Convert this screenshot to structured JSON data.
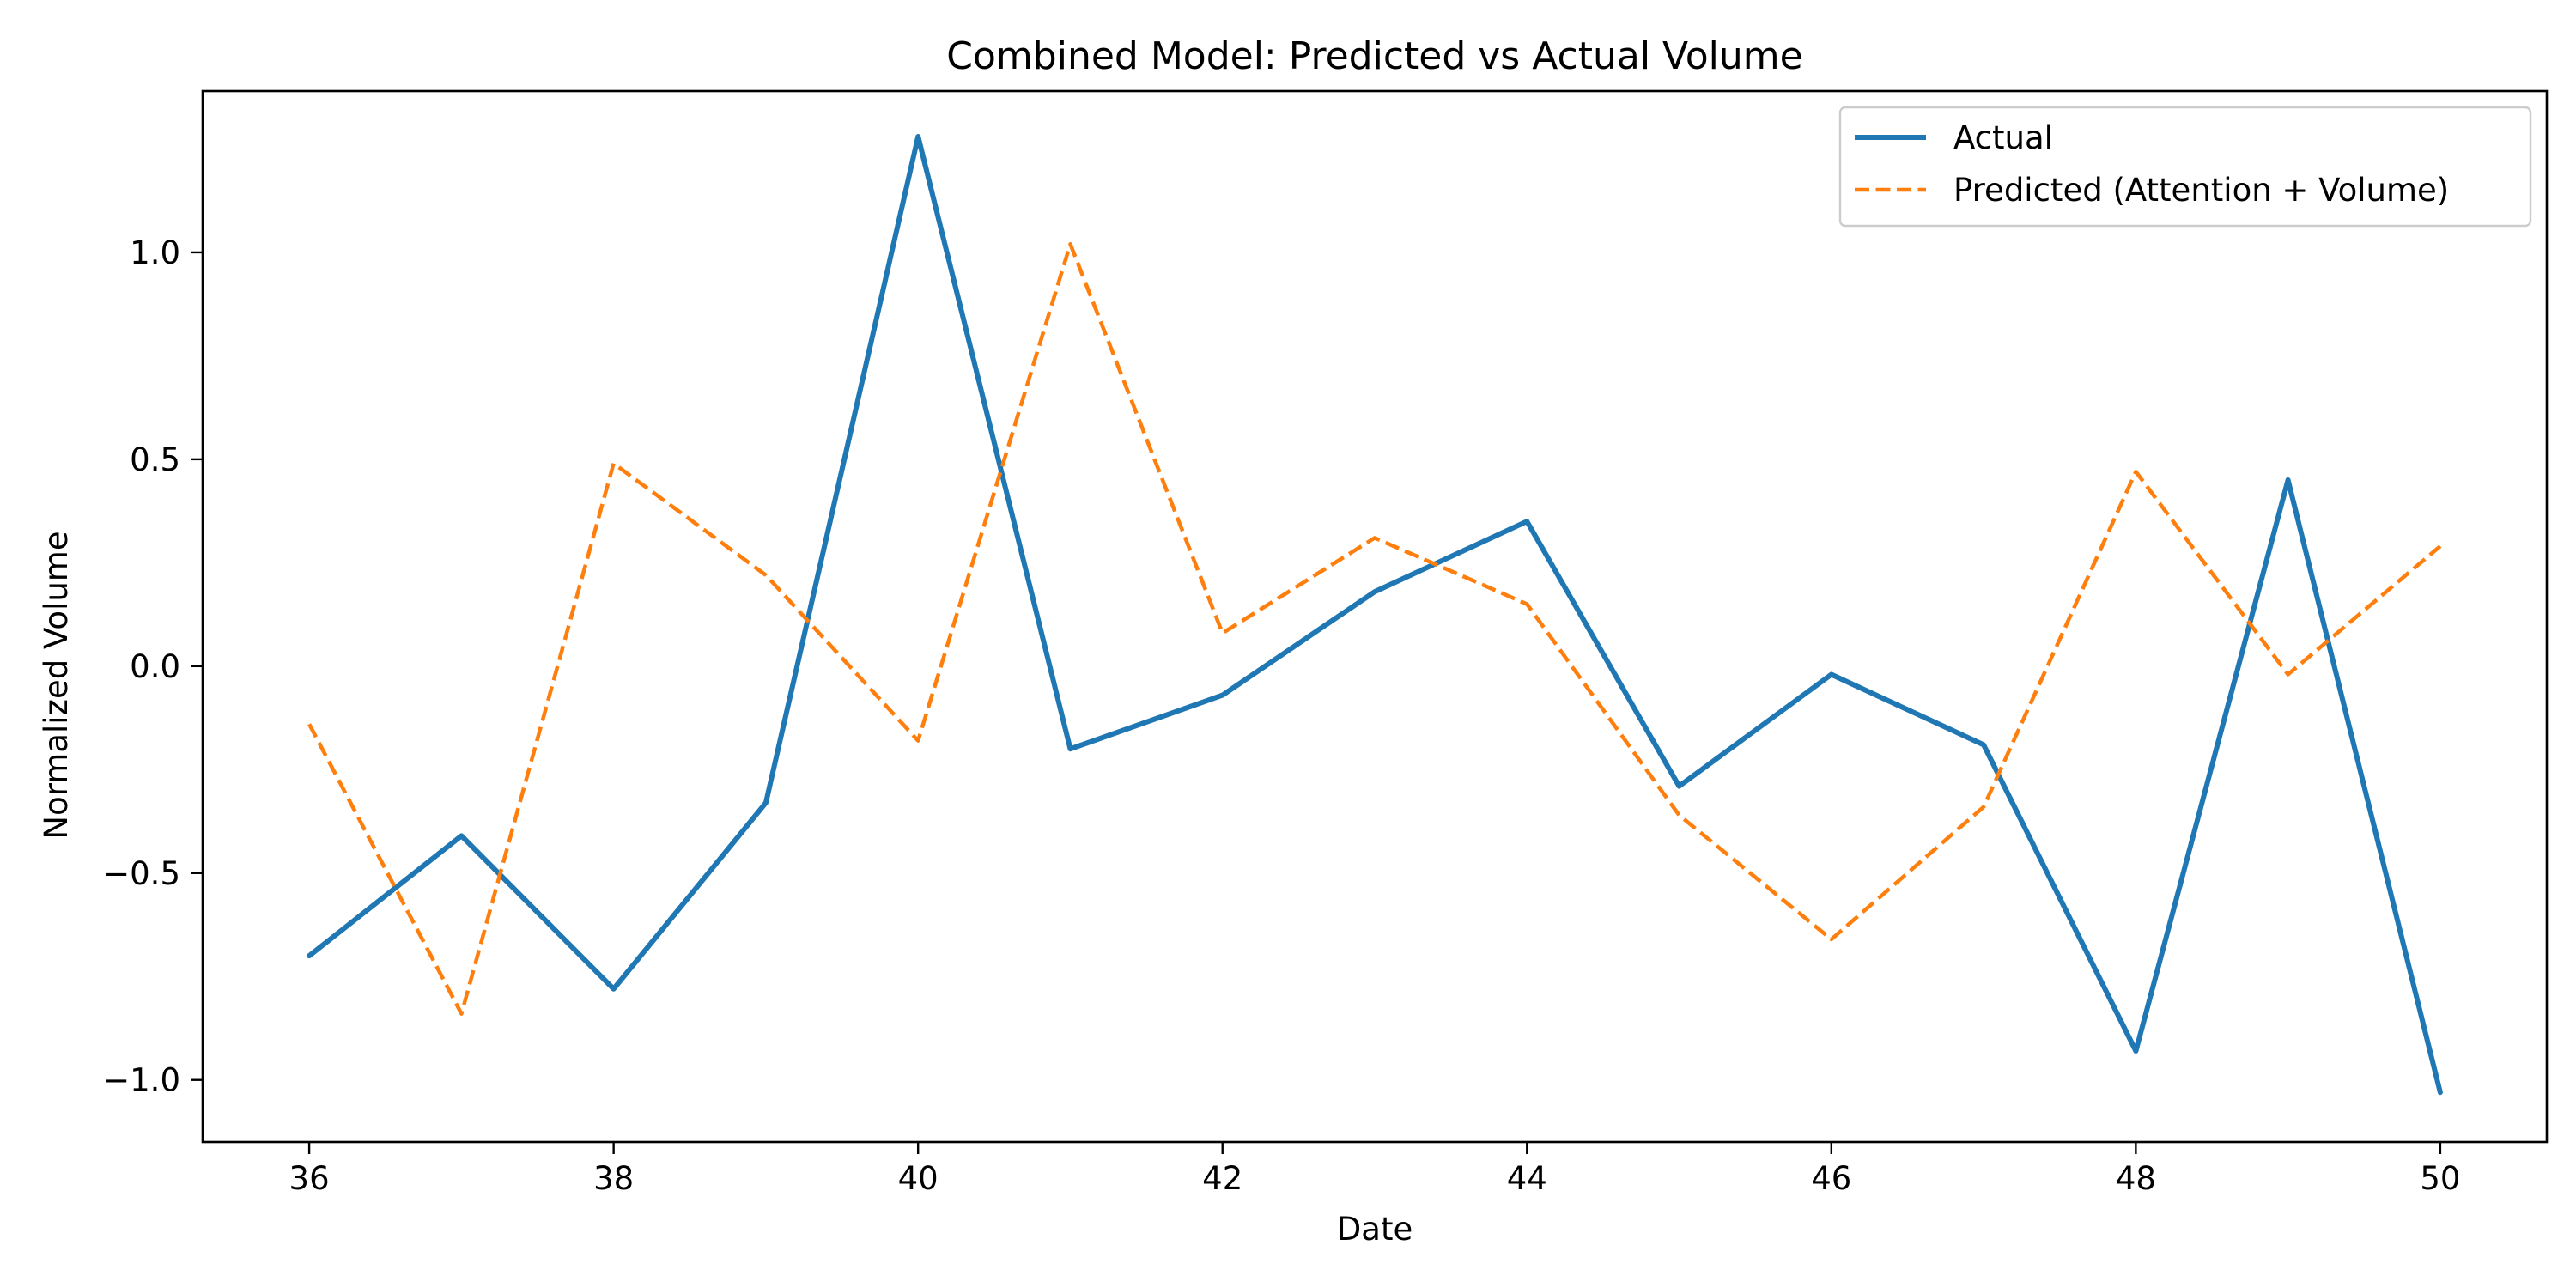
{
  "chart_data": {
    "type": "line",
    "title": "Combined Model: Predicted vs Actual Volume",
    "xlabel": "Date",
    "ylabel": "Normalized Volume",
    "x": [
      36,
      37,
      38,
      39,
      40,
      41,
      42,
      43,
      44,
      45,
      46,
      47,
      48,
      49,
      50
    ],
    "xlim": [
      35.3,
      50.7
    ],
    "ylim": [
      -1.15,
      1.39
    ],
    "xticks": [
      36,
      38,
      40,
      42,
      44,
      46,
      48,
      50
    ],
    "xtick_labels": [
      "36",
      "38",
      "40",
      "42",
      "44",
      "46",
      "48",
      "50"
    ],
    "yticks": [
      -1.0,
      -0.5,
      0.0,
      0.5,
      1.0
    ],
    "ytick_labels": [
      "−1.0",
      "−0.5",
      "0.0",
      "0.5",
      "1.0"
    ],
    "grid": false,
    "legend_position": "top-right",
    "series": [
      {
        "name": "Actual",
        "color": "#1f77b4",
        "style": "solid",
        "values": [
          -0.7,
          -0.41,
          -0.78,
          -0.33,
          1.28,
          -0.2,
          -0.07,
          0.18,
          0.35,
          -0.29,
          -0.02,
          -0.19,
          -0.93,
          0.45,
          -1.03
        ]
      },
      {
        "name": "Predicted (Attention + Volume)",
        "color": "#ff7f0e",
        "style": "dashed",
        "values": [
          -0.14,
          -0.84,
          0.49,
          0.22,
          -0.18,
          1.02,
          0.08,
          0.31,
          0.15,
          -0.36,
          -0.66,
          -0.34,
          0.47,
          -0.02,
          0.29
        ]
      }
    ]
  }
}
